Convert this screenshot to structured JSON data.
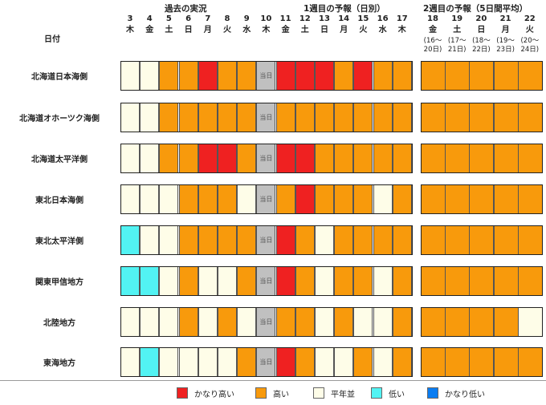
{
  "headers": {
    "past": "過去の実況",
    "week1": "1週目の予報（日別）",
    "week2": "2週目の予報（5日間平均）",
    "date_label": "日付"
  },
  "days": [
    {
      "n": "3",
      "w": "木"
    },
    {
      "n": "4",
      "w": "金"
    },
    {
      "n": "5",
      "w": "土"
    },
    {
      "n": "6",
      "w": "日"
    },
    {
      "n": "7",
      "w": "月"
    },
    {
      "n": "8",
      "w": "火"
    },
    {
      "n": "9",
      "w": "水"
    },
    {
      "n": "10",
      "w": "木"
    },
    {
      "n": "11",
      "w": "金"
    },
    {
      "n": "12",
      "w": "土"
    },
    {
      "n": "13",
      "w": "日"
    },
    {
      "n": "14",
      "w": "月"
    },
    {
      "n": "15",
      "w": "火"
    },
    {
      "n": "16",
      "w": "水"
    },
    {
      "n": "17",
      "w": "木"
    }
  ],
  "week2_days": [
    {
      "n": "18",
      "w": "金",
      "range": "(16〜20日)"
    },
    {
      "n": "19",
      "w": "土",
      "range": "(17〜21日)"
    },
    {
      "n": "20",
      "w": "日",
      "range": "(18〜22日)"
    },
    {
      "n": "21",
      "w": "月",
      "range": "(19〜23日)"
    },
    {
      "n": "22",
      "w": "火",
      "range": "(20〜24日)"
    }
  ],
  "today_label": "当日",
  "colors": {
    "very_high": "#ef2121",
    "high": "#f89a0c",
    "normal": "#fefde8",
    "low": "#52f3f3",
    "very_low": "#0a7df2",
    "today": "#c0c0c0"
  },
  "rows": [
    {
      "label": "北海道日本海側",
      "cells": [
        "normal",
        "normal",
        "high",
        "high",
        "very_high",
        "high",
        "high",
        "today",
        "very_high",
        "very_high",
        "very_high",
        "high",
        "very_high",
        "high",
        "high"
      ],
      "week2": [
        "high",
        "high",
        "high",
        "high",
        "high"
      ]
    },
    {
      "label": "北海道オホーツク海側",
      "cells": [
        "normal",
        "normal",
        "high",
        "high",
        "high",
        "high",
        "high",
        "today",
        "high",
        "high",
        "high",
        "high",
        "high",
        "high",
        "high"
      ],
      "week2": [
        "high",
        "high",
        "high",
        "high",
        "high"
      ]
    },
    {
      "label": "北海道太平洋側",
      "cells": [
        "normal",
        "normal",
        "high",
        "high",
        "very_high",
        "very_high",
        "high",
        "today",
        "very_high",
        "very_high",
        "high",
        "high",
        "high",
        "high",
        "high"
      ],
      "week2": [
        "high",
        "high",
        "high",
        "high",
        "high"
      ]
    },
    {
      "label": "東北日本海側",
      "cells": [
        "normal",
        "normal",
        "normal",
        "high",
        "high",
        "high",
        "normal",
        "today",
        "high",
        "very_high",
        "high",
        "high",
        "high",
        "normal",
        "high"
      ],
      "week2": [
        "high",
        "high",
        "high",
        "high",
        "high"
      ]
    },
    {
      "label": "東北太平洋側",
      "cells": [
        "low",
        "normal",
        "normal",
        "high",
        "high",
        "high",
        "high",
        "today",
        "very_high",
        "high",
        "normal",
        "high",
        "high",
        "high",
        "high"
      ],
      "week2": [
        "high",
        "high",
        "high",
        "high",
        "high"
      ]
    },
    {
      "label": "関東甲信地方",
      "cells": [
        "low",
        "low",
        "normal",
        "high",
        "normal",
        "normal",
        "high",
        "today",
        "very_high",
        "high",
        "normal",
        "high",
        "high",
        "normal",
        "high"
      ],
      "week2": [
        "high",
        "high",
        "high",
        "high",
        "high"
      ]
    },
    {
      "label": "北陸地方",
      "cells": [
        "normal",
        "normal",
        "normal",
        "high",
        "normal",
        "high",
        "normal",
        "today",
        "high",
        "high",
        "normal",
        "high",
        "normal",
        "normal",
        "high"
      ],
      "week2": [
        "high",
        "high",
        "high",
        "high",
        "normal"
      ]
    },
    {
      "label": "東海地方",
      "cells": [
        "normal",
        "low",
        "normal",
        "normal",
        "normal",
        "normal",
        "high",
        "today",
        "very_high",
        "high",
        "normal",
        "normal",
        "high",
        "normal",
        "high"
      ],
      "week2": [
        "high",
        "high",
        "high",
        "high",
        "high"
      ]
    }
  ],
  "legend": [
    {
      "key": "very_high",
      "label": "かなり高い"
    },
    {
      "key": "high",
      "label": "高い"
    },
    {
      "key": "normal",
      "label": "平年並"
    },
    {
      "key": "low",
      "label": "低い"
    },
    {
      "key": "very_low",
      "label": "かなり低い"
    }
  ]
}
